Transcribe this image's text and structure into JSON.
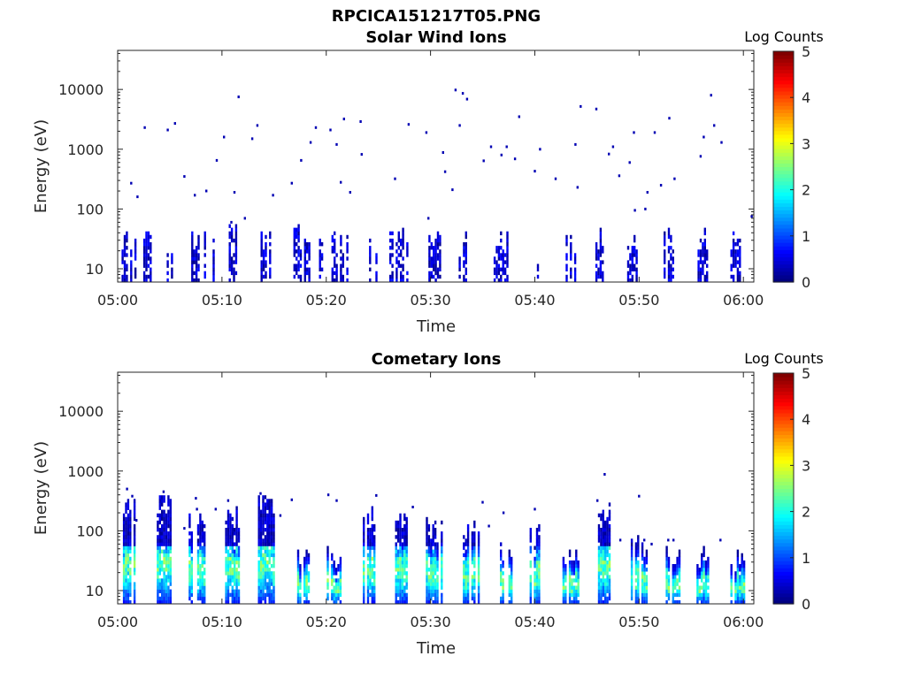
{
  "figure_title": "RPCICA151217T05.PNG",
  "chart_data": [
    {
      "type": "heatmap",
      "title": "Solar Wind Ions",
      "xlabel": "Time",
      "ylabel": "Energy (eV)",
      "y_scale": "log",
      "ylim": [
        6,
        45000
      ],
      "xlim": [
        "05:00",
        "06:01"
      ],
      "x_ticks": [
        "05:00",
        "05:10",
        "05:20",
        "05:30",
        "05:40",
        "05:50",
        "06:00"
      ],
      "y_ticks": [
        "10",
        "100",
        "1000",
        "10000"
      ],
      "colorbar": {
        "label": "Log Counts",
        "range": [
          0,
          5
        ],
        "ticks": [
          "0",
          "1",
          "2",
          "3",
          "4",
          "5"
        ],
        "colormap": "jet"
      },
      "grid": false,
      "bursts": [
        {
          "t": 0.6,
          "w": 0.45,
          "top": 35,
          "lvl": 0.2
        },
        {
          "t": 1.5,
          "w": 0.6,
          "top": 35,
          "lvl": 0.2
        },
        {
          "t": 2.8,
          "w": 0.7,
          "top": 35,
          "lvl": 0.2
        },
        {
          "t": 4.9,
          "w": 0.8,
          "top": 35,
          "lvl": 0.2
        },
        {
          "t": 7.7,
          "w": 1.3,
          "top": 35,
          "lvl": 0.2
        },
        {
          "t": 9.1,
          "w": 0.4,
          "top": 35,
          "lvl": 0.2
        },
        {
          "t": 11.0,
          "w": 0.7,
          "top": 45,
          "lvl": 0.2
        },
        {
          "t": 14.3,
          "w": 1.2,
          "top": 40,
          "lvl": 0.2
        },
        {
          "t": 17.6,
          "w": 1.5,
          "top": 45,
          "lvl": 0.2
        },
        {
          "t": 19.5,
          "w": 0.4,
          "top": 40,
          "lvl": 0.2
        },
        {
          "t": 21.3,
          "w": 1.6,
          "top": 35,
          "lvl": 0.2
        },
        {
          "t": 24.5,
          "w": 0.8,
          "top": 35,
          "lvl": 0.2
        },
        {
          "t": 27.0,
          "w": 1.9,
          "top": 38,
          "lvl": 0.2
        },
        {
          "t": 30.4,
          "w": 1.2,
          "top": 35,
          "lvl": 0.2
        },
        {
          "t": 33.1,
          "w": 0.8,
          "top": 35,
          "lvl": 0.2
        },
        {
          "t": 36.7,
          "w": 1.3,
          "top": 35,
          "lvl": 0.2
        },
        {
          "t": 40.4,
          "w": 0.4,
          "top": 35,
          "lvl": 0.2
        },
        {
          "t": 43.3,
          "w": 1.1,
          "top": 35,
          "lvl": 0.2
        },
        {
          "t": 46.1,
          "w": 1.0,
          "top": 40,
          "lvl": 0.2
        },
        {
          "t": 49.2,
          "w": 1.1,
          "top": 35,
          "lvl": 0.2
        },
        {
          "t": 52.8,
          "w": 0.9,
          "top": 40,
          "lvl": 0.2
        },
        {
          "t": 56.0,
          "w": 1.2,
          "top": 38,
          "lvl": 0.2
        },
        {
          "t": 59.3,
          "w": 1.1,
          "top": 40,
          "lvl": 0.2
        }
      ],
      "scatter_points": [
        [
          1.3,
          270
        ],
        [
          1.9,
          160
        ],
        [
          2.6,
          2300
        ],
        [
          4.8,
          2100
        ],
        [
          5.5,
          2700
        ],
        [
          6.4,
          350
        ],
        [
          7.4,
          170
        ],
        [
          8.5,
          200
        ],
        [
          9.5,
          650
        ],
        [
          10.2,
          1600
        ],
        [
          10.9,
          60
        ],
        [
          11.2,
          190
        ],
        [
          11.6,
          7500
        ],
        [
          12.2,
          70
        ],
        [
          12.9,
          1500
        ],
        [
          13.4,
          2500
        ],
        [
          14.9,
          170
        ],
        [
          16.7,
          270
        ],
        [
          17.6,
          650
        ],
        [
          18.5,
          1300
        ],
        [
          19.0,
          2300
        ],
        [
          20.4,
          2100
        ],
        [
          21.0,
          1200
        ],
        [
          21.4,
          280
        ],
        [
          21.7,
          3200
        ],
        [
          22.3,
          190
        ],
        [
          23.3,
          2900
        ],
        [
          23.4,
          820
        ],
        [
          26.6,
          320
        ],
        [
          27.9,
          2600
        ],
        [
          29.6,
          1900
        ],
        [
          29.8,
          70
        ],
        [
          31.2,
          880
        ],
        [
          31.4,
          420
        ],
        [
          32.1,
          210
        ],
        [
          32.4,
          9800
        ],
        [
          32.8,
          2500
        ],
        [
          33.1,
          8600
        ],
        [
          33.5,
          6900
        ],
        [
          35.1,
          640
        ],
        [
          35.8,
          1100
        ],
        [
          36.8,
          800
        ],
        [
          37.3,
          1100
        ],
        [
          38.1,
          690
        ],
        [
          38.5,
          3500
        ],
        [
          40.0,
          430
        ],
        [
          40.5,
          1000
        ],
        [
          42.0,
          320
        ],
        [
          43.9,
          1200
        ],
        [
          44.1,
          230
        ],
        [
          44.4,
          5200
        ],
        [
          45.9,
          4700
        ],
        [
          47.1,
          830
        ],
        [
          47.5,
          1100
        ],
        [
          48.1,
          360
        ],
        [
          49.1,
          600
        ],
        [
          49.5,
          1900
        ],
        [
          49.6,
          95
        ],
        [
          50.6,
          100
        ],
        [
          50.8,
          190
        ],
        [
          51.5,
          1900
        ],
        [
          52.1,
          250
        ],
        [
          52.9,
          3300
        ],
        [
          53.4,
          320
        ],
        [
          55.9,
          760
        ],
        [
          56.2,
          1600
        ],
        [
          56.9,
          8000
        ],
        [
          57.2,
          2500
        ],
        [
          57.9,
          1300
        ],
        [
          60.8,
          75
        ]
      ]
    },
    {
      "type": "heatmap",
      "title": "Cometary Ions",
      "xlabel": "Time",
      "ylabel": "Energy (eV)",
      "y_scale": "log",
      "ylim": [
        6,
        45000
      ],
      "xlim": [
        "05:00",
        "06:01"
      ],
      "x_ticks": [
        "05:00",
        "05:10",
        "05:20",
        "05:30",
        "05:40",
        "05:50",
        "06:00"
      ],
      "y_ticks": [
        "10",
        "100",
        "1000",
        "10000"
      ],
      "colorbar": {
        "label": "Log Counts",
        "range": [
          0,
          5
        ],
        "ticks": [
          "0",
          "1",
          "2",
          "3",
          "4",
          "5"
        ],
        "colormap": "jet"
      },
      "grid": false,
      "bursts": [
        {
          "t": 1.1,
          "w": 1.2,
          "top": 300,
          "lvl": 0.55
        },
        {
          "t": 4.4,
          "w": 1.3,
          "top": 350,
          "lvl": 0.6
        },
        {
          "t": 7.6,
          "w": 1.6,
          "top": 160,
          "lvl": 0.6
        },
        {
          "t": 11.0,
          "w": 1.4,
          "top": 200,
          "lvl": 0.55
        },
        {
          "t": 14.2,
          "w": 1.5,
          "top": 300,
          "lvl": 0.6
        },
        {
          "t": 17.7,
          "w": 1.4,
          "top": 45,
          "lvl": 0.6
        },
        {
          "t": 20.8,
          "w": 1.5,
          "top": 45,
          "lvl": 0.6
        },
        {
          "t": 24.0,
          "w": 1.4,
          "top": 200,
          "lvl": 0.6
        },
        {
          "t": 27.3,
          "w": 1.4,
          "top": 160,
          "lvl": 0.6
        },
        {
          "t": 30.4,
          "w": 1.7,
          "top": 140,
          "lvl": 0.55
        },
        {
          "t": 33.9,
          "w": 1.6,
          "top": 130,
          "lvl": 0.6
        },
        {
          "t": 37.3,
          "w": 1.3,
          "top": 60,
          "lvl": 0.6
        },
        {
          "t": 40.1,
          "w": 1.2,
          "top": 100,
          "lvl": 0.6
        },
        {
          "t": 43.4,
          "w": 1.5,
          "top": 45,
          "lvl": 0.55
        },
        {
          "t": 46.5,
          "w": 1.3,
          "top": 300,
          "lvl": 0.5
        },
        {
          "t": 50.0,
          "w": 1.6,
          "top": 70,
          "lvl": 0.6
        },
        {
          "t": 53.2,
          "w": 1.3,
          "top": 45,
          "lvl": 0.6
        },
        {
          "t": 56.2,
          "w": 1.4,
          "top": 45,
          "lvl": 0.6
        },
        {
          "t": 59.4,
          "w": 1.3,
          "top": 45,
          "lvl": 0.6
        }
      ],
      "scatter_points": [
        [
          0.9,
          500
        ],
        [
          1.4,
          380
        ],
        [
          1.8,
          150
        ],
        [
          4.4,
          450
        ],
        [
          6.4,
          110
        ],
        [
          7.5,
          350
        ],
        [
          7.6,
          230
        ],
        [
          9.4,
          230
        ],
        [
          10.6,
          320
        ],
        [
          13.7,
          420
        ],
        [
          15.6,
          180
        ],
        [
          16.7,
          330
        ],
        [
          20.2,
          400
        ],
        [
          21.0,
          320
        ],
        [
          24.8,
          390
        ],
        [
          28.3,
          250
        ],
        [
          35.0,
          300
        ],
        [
          35.6,
          120
        ],
        [
          37.0,
          200
        ],
        [
          40.0,
          230
        ],
        [
          46.0,
          320
        ],
        [
          46.5,
          180
        ],
        [
          46.7,
          880
        ],
        [
          48.2,
          70
        ],
        [
          50.0,
          380
        ],
        [
          50.5,
          70
        ],
        [
          51.2,
          60
        ],
        [
          52.8,
          70
        ],
        [
          53.3,
          70
        ],
        [
          57.8,
          70
        ]
      ]
    }
  ]
}
